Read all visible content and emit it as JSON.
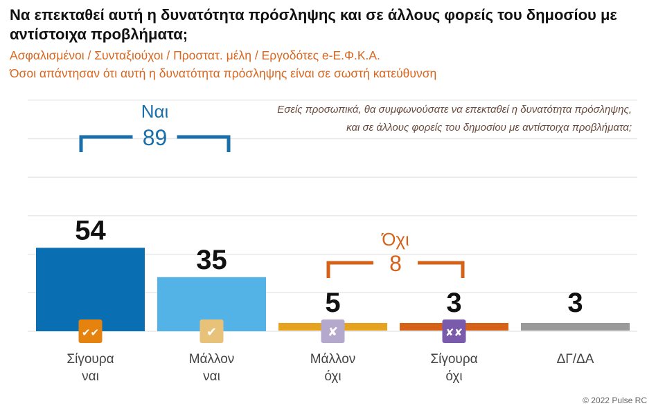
{
  "chart_data": {
    "type": "bar",
    "title": "Να επεκταθεί αυτή η δυνατότητα πρόσληψης και σε άλλους φορείς του δημοσίου με αντίστοιχα προβλήματα;",
    "subtitle_1": "Ασφαλισμένοι / Συνταξιούχοι / Προστατ. μέλη / Εργοδότες e-Ε.Φ.Κ.Α.",
    "subtitle_2": "Όσοι απάντησαν ότι αυτή η δυνατότητα πρόσληψης είναι σε σωστή κατεύθυνση",
    "question_line_1": "Εσείς προσωπικά, θα συμφωνούσατε να επεκταθεί η δυνατότητα πρόσληψης,",
    "question_line_2": "και σε άλλους φορείς του δημοσίου με αντίστοιχα προβλήματα;",
    "categories": [
      [
        "Σίγουρα",
        "ναι"
      ],
      [
        "Μάλλον",
        "ναι"
      ],
      [
        "Μάλλον",
        "όχι"
      ],
      [
        "Σίγουρα",
        "όχι"
      ],
      [
        "ΔΓ/ΔΑ"
      ]
    ],
    "values": [
      54,
      35,
      5,
      3,
      3
    ],
    "colors": [
      "#0a6fb2",
      "#53b3e6",
      "#e6a320",
      "#d6621a",
      "#9a9a9a"
    ],
    "icons": [
      "double-check",
      "check",
      "cross",
      "double-cross",
      null
    ],
    "icon_colors": [
      "#e6820e",
      "#e9c27a",
      "#b4a8cc",
      "#7a5bab",
      null
    ],
    "ylim": [
      0,
      60
    ],
    "groups": [
      {
        "label": "Ναι",
        "value": "89",
        "color": "#1a6fa8",
        "from": 0,
        "to": 1
      },
      {
        "label": "Όχι",
        "value": "8",
        "color": "#d6621a",
        "from": 2,
        "to": 3
      }
    ],
    "xlabel": "",
    "ylabel": ""
  },
  "copyright": "© 2022 Pulse RC"
}
